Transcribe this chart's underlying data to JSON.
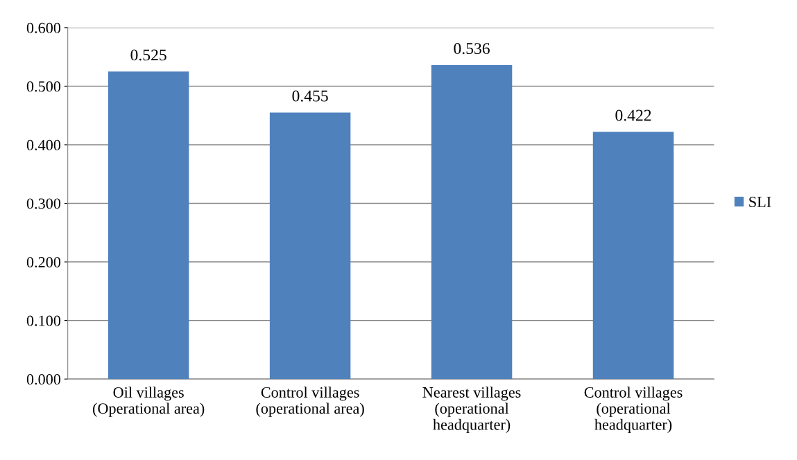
{
  "chart_data": {
    "type": "bar",
    "categories": [
      "Oil villages\n(Operational area)",
      "Control villages\n(operational area)",
      "Nearest villages\n(operational\nheadquarter)",
      "Control villages\n(operational\nheadquarter)"
    ],
    "series": [
      {
        "name": "SLI",
        "color": "#4f81bd",
        "values": [
          0.525,
          0.455,
          0.536,
          0.422
        ]
      }
    ],
    "ylim": [
      0,
      0.6
    ],
    "yticks": [
      {
        "value": 0,
        "label": "0.000"
      },
      {
        "value": 0.1,
        "label": "0.100"
      },
      {
        "value": 0.2,
        "label": "0.200"
      },
      {
        "value": 0.3,
        "label": "0.300"
      },
      {
        "value": 0.4,
        "label": "0.400"
      },
      {
        "value": 0.5,
        "label": "0.500"
      },
      {
        "value": 0.6,
        "label": "0.600"
      }
    ],
    "grid": "y",
    "legend": "right",
    "data_labels": true
  }
}
